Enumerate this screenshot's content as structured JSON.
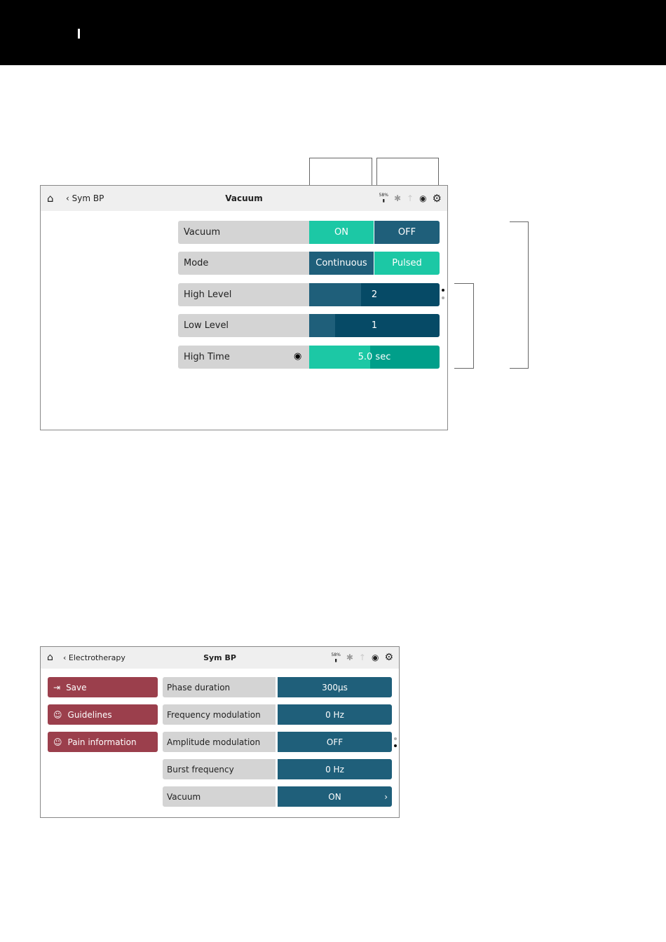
{
  "screen1": {
    "header": {
      "back_label": "Sym BP",
      "title": "Vacuum",
      "battery": "58%"
    },
    "rows": [
      {
        "label": "Vacuum",
        "options": [
          "ON",
          "OFF"
        ],
        "selected": "ON"
      },
      {
        "label": "Mode",
        "options": [
          "Continuous",
          "Pulsed"
        ],
        "selected": "Pulsed"
      },
      {
        "label": "High Level",
        "value": "2",
        "fill_percent": 40
      },
      {
        "label": "Low Level",
        "value": "1",
        "fill_percent": 20
      },
      {
        "label": "High Time",
        "value": "5.0 sec",
        "fill_percent": 47
      }
    ],
    "page": 1,
    "pages": 2
  },
  "screen2": {
    "header": {
      "back_label": "Electrotherapy",
      "title": "Sym BP",
      "battery": "58%"
    },
    "buttons": [
      {
        "label": "Save"
      },
      {
        "label": "Guidelines"
      },
      {
        "label": "Pain information"
      }
    ],
    "rows": [
      {
        "label": "Phase duration",
        "value": "300µs"
      },
      {
        "label": "Frequency modulation",
        "value": "0 Hz"
      },
      {
        "label": "Amplitude modulation",
        "value": "OFF"
      },
      {
        "label": "Burst frequency",
        "value": "0 Hz"
      },
      {
        "label": "Vacuum",
        "value": "ON"
      }
    ],
    "page": 2,
    "pages": 2
  },
  "colors": {
    "teal": "#1cc8a5",
    "dark": "#1f5f7a",
    "darker": "#064a66",
    "red": "#9b3f4c"
  }
}
